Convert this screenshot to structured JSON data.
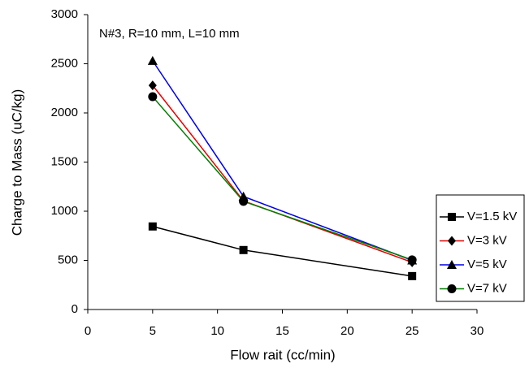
{
  "chart_data": {
    "type": "line",
    "annotation": "N#3, R=10 mm, L=10 mm",
    "x_label": "Flow rait (cc/min)",
    "y_label": "Charge to Mass (uC/kg)",
    "x": [
      5,
      12,
      25
    ],
    "series": [
      {
        "name": "V=1.5 kV",
        "color": "#000000",
        "marker": "square",
        "values": [
          845,
          605,
          340
        ]
      },
      {
        "name": "V=3 kV",
        "color": "#e00000",
        "marker": "diamond",
        "values": [
          2280,
          1105,
          480
        ]
      },
      {
        "name": "V=5 kV",
        "color": "#0000e0",
        "marker": "triangle",
        "values": [
          2530,
          1150,
          500
        ]
      },
      {
        "name": "V=7 kV",
        "color": "#008000",
        "marker": "circle",
        "values": [
          2165,
          1100,
          505
        ]
      }
    ],
    "xlim": [
      0,
      30
    ],
    "xticks": [
      0,
      5,
      10,
      15,
      20,
      25,
      30
    ],
    "ylim": [
      0,
      3000
    ],
    "yticks": [
      0,
      500,
      1000,
      1500,
      2000,
      2500,
      3000
    ],
    "grid": false,
    "legend": "right"
  }
}
